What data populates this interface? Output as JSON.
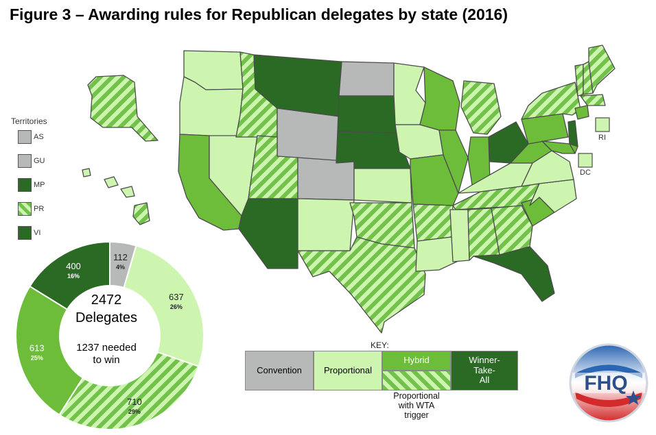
{
  "title": "Figure 3 – Awarding rules for Republican delegates by state (2016)",
  "colors": {
    "convention": "#b7b9b8",
    "proportional": "#cdf5b0",
    "hybrid": "#6dbd3b",
    "winner_take_all": "#2b6a25",
    "stripe_light": "#cdf5b0",
    "stripe_dark": "#72c14a",
    "border": "#4b4b4b"
  },
  "territories": {
    "title": "Territories",
    "items": [
      {
        "code": "AS",
        "rule": "convention"
      },
      {
        "code": "GU",
        "rule": "convention"
      },
      {
        "code": "MP",
        "rule": "winner_take_all"
      },
      {
        "code": "PR",
        "rule": "proportional_wta"
      },
      {
        "code": "VI",
        "rule": "winner_take_all"
      }
    ]
  },
  "map_labels": {
    "ri": "RI",
    "dc": "DC"
  },
  "key": {
    "title": "KEY:",
    "convention": "Convention",
    "proportional": "Proportional",
    "hybrid": "Hybrid",
    "winner_take_all": "Winner-\nTake-\nAll",
    "proportional_wta": "Proportional\nwith WTA\ntrigger"
  },
  "donut": {
    "total_text": "2472",
    "total_sub": "Delegates",
    "needed_text": "1237 needed\nto win"
  },
  "chart_data": {
    "type": "pie",
    "total": 2472,
    "slices": [
      {
        "value": 112,
        "percent_label": "4%",
        "rule": "convention"
      },
      {
        "value": 637,
        "percent_label": "26%",
        "rule": "proportional"
      },
      {
        "value": 710,
        "percent_label": "29%",
        "rule": "proportional_wta"
      },
      {
        "value": 613,
        "percent_label": "25%",
        "rule": "hybrid"
      },
      {
        "value": 400,
        "percent_label": "16%",
        "rule": "winner_take_all"
      }
    ]
  },
  "logo": {
    "text": "FHQ"
  }
}
